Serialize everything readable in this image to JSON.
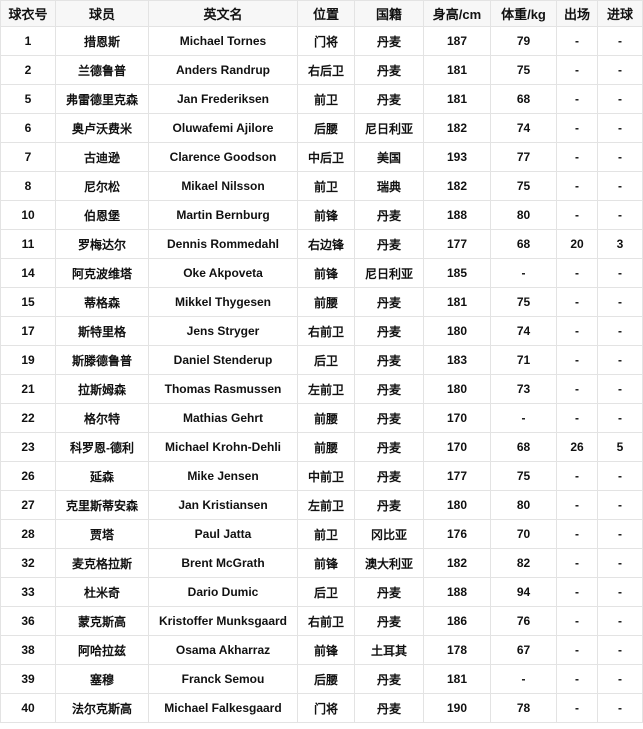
{
  "table": {
    "headers": [
      "球衣号",
      "球员",
      "英文名",
      "位置",
      "国籍",
      "身高/cm",
      "体重/kg",
      "出场",
      "进球"
    ],
    "rows": [
      [
        "1",
        "措恩斯",
        "Michael Tornes",
        "门将",
        "丹麦",
        "187",
        "79",
        "-",
        "-"
      ],
      [
        "2",
        "兰德鲁普",
        "Anders Randrup",
        "右后卫",
        "丹麦",
        "181",
        "75",
        "-",
        "-"
      ],
      [
        "5",
        "弗雷德里克森",
        "Jan Frederiksen",
        "前卫",
        "丹麦",
        "181",
        "68",
        "-",
        "-"
      ],
      [
        "6",
        "奥卢沃费米",
        "Oluwafemi Ajilore",
        "后腰",
        "尼日利亚",
        "182",
        "74",
        "-",
        "-"
      ],
      [
        "7",
        "古迪逊",
        "Clarence Goodson",
        "中后卫",
        "美国",
        "193",
        "77",
        "-",
        "-"
      ],
      [
        "8",
        "尼尔松",
        "Mikael Nilsson",
        "前卫",
        "瑞典",
        "182",
        "75",
        "-",
        "-"
      ],
      [
        "10",
        "伯恩堡",
        "Martin Bernburg",
        "前锋",
        "丹麦",
        "188",
        "80",
        "-",
        "-"
      ],
      [
        "11",
        "罗梅达尔",
        "Dennis Rommedahl",
        "右边锋",
        "丹麦",
        "177",
        "68",
        "20",
        "3"
      ],
      [
        "14",
        "阿克波维塔",
        "Oke Akpoveta",
        "前锋",
        "尼日利亚",
        "185",
        "-",
        "-",
        "-"
      ],
      [
        "15",
        "蒂格森",
        "Mikkel Thygesen",
        "前腰",
        "丹麦",
        "181",
        "75",
        "-",
        "-"
      ],
      [
        "17",
        "斯特里格",
        "Jens Stryger",
        "右前卫",
        "丹麦",
        "180",
        "74",
        "-",
        "-"
      ],
      [
        "19",
        "斯滕德鲁普",
        "Daniel Stenderup",
        "后卫",
        "丹麦",
        "183",
        "71",
        "-",
        "-"
      ],
      [
        "21",
        "拉斯姆森",
        "Thomas Rasmussen",
        "左前卫",
        "丹麦",
        "180",
        "73",
        "-",
        "-"
      ],
      [
        "22",
        "格尔特",
        "Mathias Gehrt",
        "前腰",
        "丹麦",
        "170",
        "-",
        "-",
        "-"
      ],
      [
        "23",
        "科罗恩-德利",
        "Michael Krohn-Dehli",
        "前腰",
        "丹麦",
        "170",
        "68",
        "26",
        "5"
      ],
      [
        "26",
        "延森",
        "Mike Jensen",
        "中前卫",
        "丹麦",
        "177",
        "75",
        "-",
        "-"
      ],
      [
        "27",
        "克里斯蒂安森",
        "Jan Kristiansen",
        "左前卫",
        "丹麦",
        "180",
        "80",
        "-",
        "-"
      ],
      [
        "28",
        "贾塔",
        "Paul Jatta",
        "前卫",
        "冈比亚",
        "176",
        "70",
        "-",
        "-"
      ],
      [
        "32",
        "麦克格拉斯",
        "Brent McGrath",
        "前锋",
        "澳大利亚",
        "182",
        "82",
        "-",
        "-"
      ],
      [
        "33",
        "杜米奇",
        "Dario Dumic",
        "后卫",
        "丹麦",
        "188",
        "94",
        "-",
        "-"
      ],
      [
        "36",
        "蒙克斯高",
        "Kristoffer Munksgaard",
        "右前卫",
        "丹麦",
        "186",
        "76",
        "-",
        "-"
      ],
      [
        "38",
        "阿哈拉兹",
        "Osama Akharraz",
        "前锋",
        "土耳其",
        "178",
        "67",
        "-",
        "-"
      ],
      [
        "39",
        "塞穆",
        "Franck Semou",
        "后腰",
        "丹麦",
        "181",
        "-",
        "-",
        "-"
      ],
      [
        "40",
        "法尔克斯高",
        "Michael Falkesgaard",
        "门将",
        "丹麦",
        "190",
        "78",
        "-",
        "-"
      ]
    ]
  }
}
